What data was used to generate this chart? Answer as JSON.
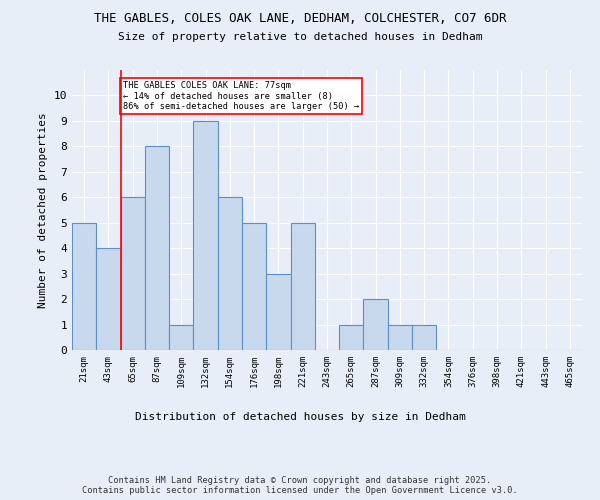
{
  "title1": "THE GABLES, COLES OAK LANE, DEDHAM, COLCHESTER, CO7 6DR",
  "title2": "Size of property relative to detached houses in Dedham",
  "xlabel": "Distribution of detached houses by size in Dedham",
  "ylabel": "Number of detached properties",
  "bin_labels": [
    "21sqm",
    "43sqm",
    "65sqm",
    "87sqm",
    "109sqm",
    "132sqm",
    "154sqm",
    "176sqm",
    "198sqm",
    "221sqm",
    "243sqm",
    "265sqm",
    "287sqm",
    "309sqm",
    "332sqm",
    "354sqm",
    "376sqm",
    "398sqm",
    "421sqm",
    "443sqm",
    "465sqm"
  ],
  "bar_heights": [
    5,
    4,
    6,
    8,
    1,
    9,
    6,
    5,
    3,
    5,
    0,
    1,
    2,
    1,
    1,
    0,
    0,
    0,
    0,
    0,
    0
  ],
  "bar_color": "#c8d9ed",
  "bar_edge_color": "#5b8fc9",
  "ylim": [
    0,
    11
  ],
  "yticks": [
    0,
    1,
    2,
    3,
    4,
    5,
    6,
    7,
    8,
    9,
    10,
    11
  ],
  "red_line_index": 2.0,
  "annotation_text": "THE GABLES COLES OAK LANE: 77sqm\n← 14% of detached houses are smaller (8)\n86% of semi-detached houses are larger (50) →",
  "annotation_box_color": "white",
  "annotation_box_edge_color": "red",
  "footer": "Contains HM Land Registry data © Crown copyright and database right 2025.\nContains public sector information licensed under the Open Government Licence v3.0.",
  "background_color": "#e8eef8",
  "plot_bg_color": "#e8eef8"
}
